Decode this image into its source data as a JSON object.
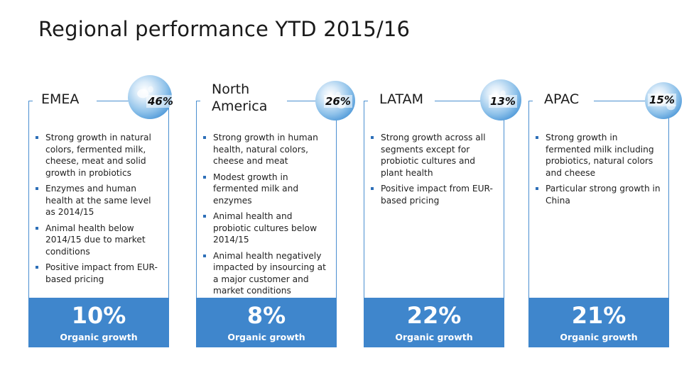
{
  "title": "Regional performance YTD 2015/16",
  "regions": [
    {
      "name": "EMEA",
      "share": "46%",
      "bullets": [
        "Strong growth in natural colors, fermented milk, cheese, meat and solid growth in probiotics",
        "Enzymes and human health at the same level as 2014/15",
        "Animal health below 2014/15 due to market conditions",
        "Positive impact from EUR-based pricing"
      ],
      "growth_value": "10%",
      "growth_label": "Organic growth"
    },
    {
      "name": "North America",
      "share": "26%",
      "bullets": [
        "Strong growth in human health, natural colors, cheese and meat",
        "Modest growth in fermented milk and enzymes",
        "Animal health and probiotic cultures below 2014/15",
        "Animal health negatively impacted by insourcing at a major customer and market conditions"
      ],
      "growth_value": "8%",
      "growth_label": "Organic growth"
    },
    {
      "name": "LATAM",
      "share": "13%",
      "bullets": [
        "Strong growth across all segments except for probiotic cultures and plant health",
        "Positive impact from EUR-based pricing"
      ],
      "growth_value": "22%",
      "growth_label": "Organic growth"
    },
    {
      "name": "APAC",
      "share": "15%",
      "bullets": [
        "Strong growth in fermented milk including probiotics, natural colors and cheese",
        "Particular strong growth in China"
      ],
      "growth_value": "21%",
      "growth_label": "Organic growth"
    }
  ]
}
